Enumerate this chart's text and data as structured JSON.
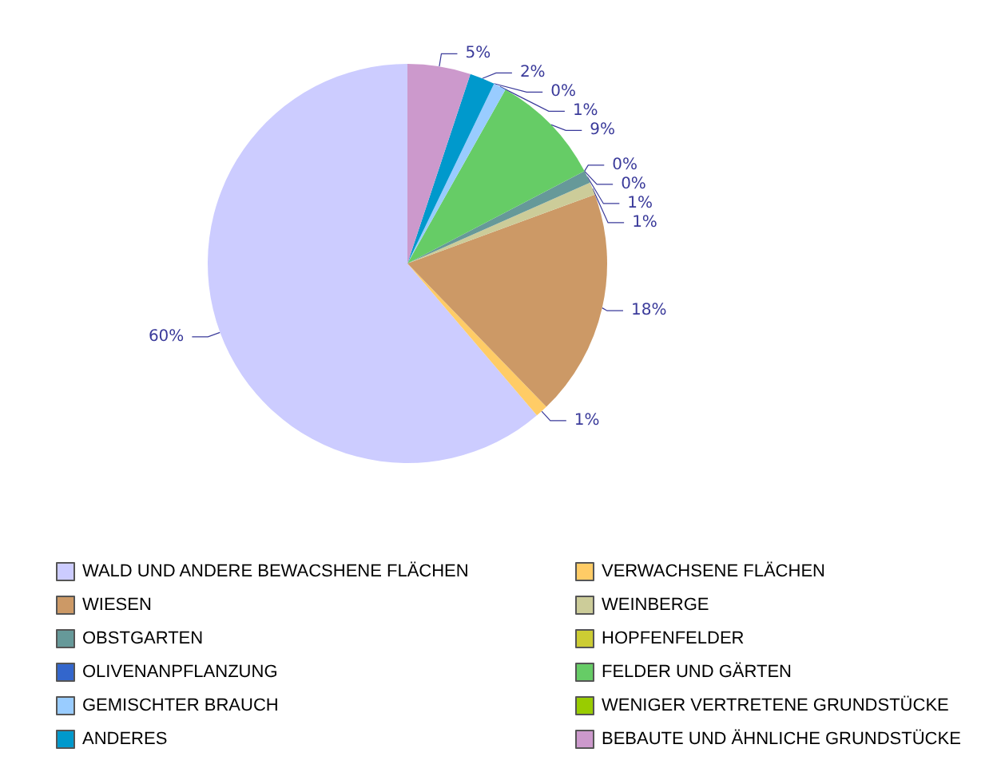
{
  "chart_data": {
    "type": "pie",
    "categories": [
      "WALD UND ANDERE BEWACSHENE FLÄCHEN",
      "VERWACHSENE FLÄCHEN",
      "WIESEN",
      "WEINBERGE",
      "OBSTGARTEN",
      "HOPFENFELDER",
      "OLIVENANPFLANZUNG",
      "FELDER UND GÄRTEN",
      "GEMISCHTER BRAUCH",
      "WENIGER VERTRETENE GRUNDSTÜCKE",
      "ANDERES",
      "BEBAUTE UND ÄHNLICHE GRUNDSTÜCKE"
    ],
    "values": [
      60,
      1,
      18,
      1,
      1,
      0,
      0,
      9,
      1,
      0,
      2,
      5
    ],
    "colors": [
      "#ccccff",
      "#ffcc66",
      "#cc9966",
      "#cccc99",
      "#669999",
      "#cccc33",
      "#3366cc",
      "#66cc66",
      "#99ccff",
      "#99cc00",
      "#0099cc",
      "#cc99cc"
    ],
    "value_labels": [
      "60%",
      "1%",
      "18%",
      "1%",
      "1%",
      "0%",
      "0%",
      "9%",
      "1%",
      "0%",
      "2%",
      "5%"
    ],
    "legend": "bottom"
  }
}
